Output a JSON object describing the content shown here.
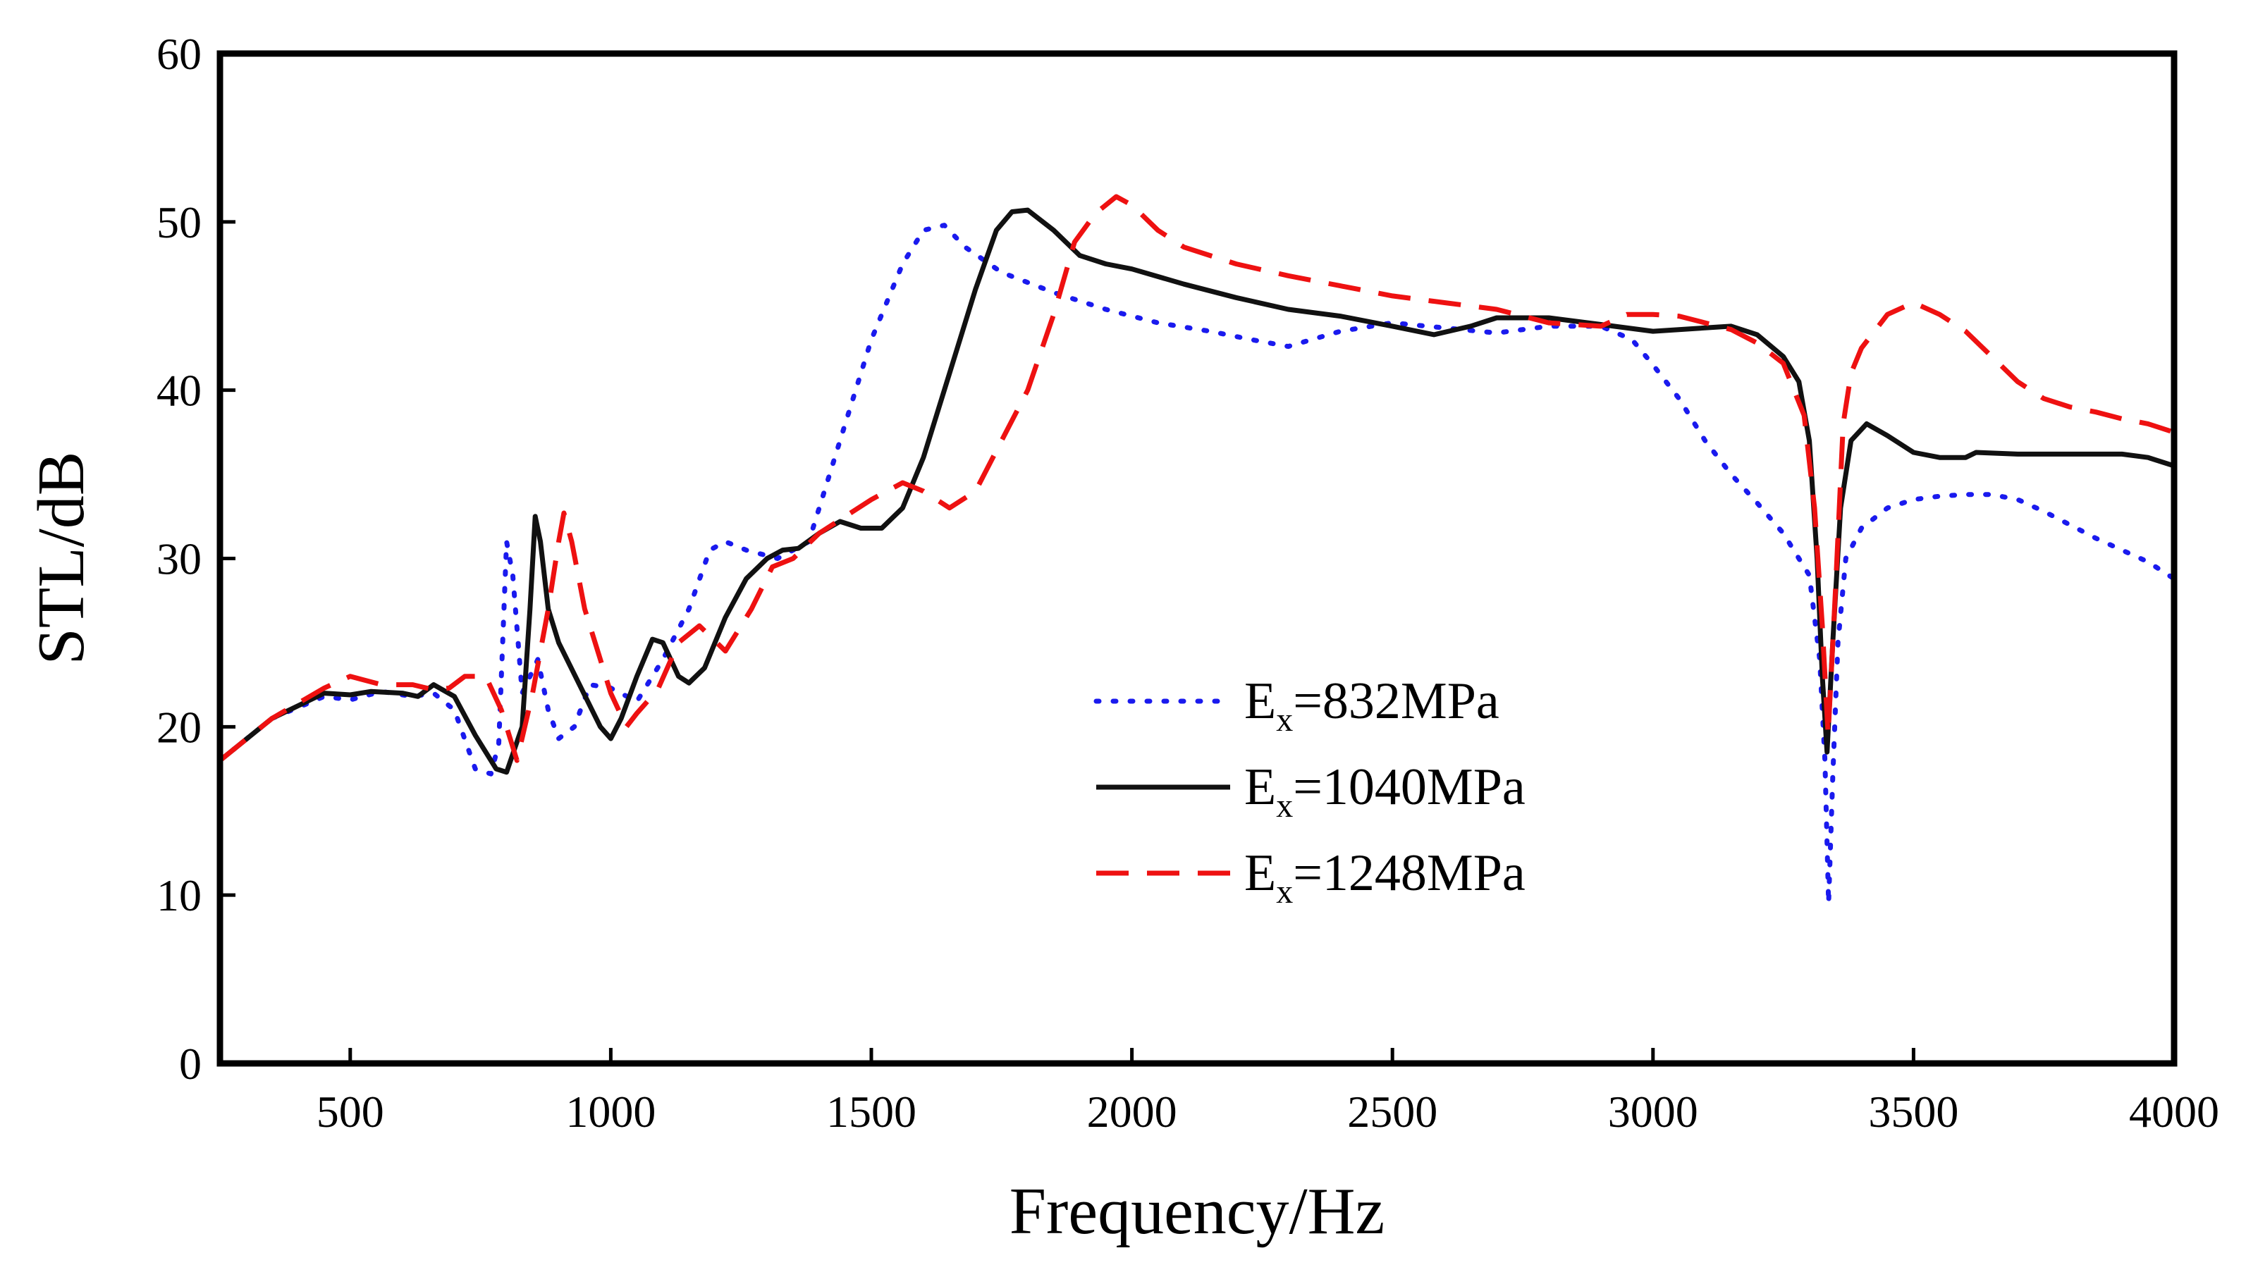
{
  "chart_data": {
    "type": "line",
    "title": "",
    "xlabel": "Frequency/Hz",
    "ylabel": "STL/dB",
    "xlim": [
      250,
      4000
    ],
    "ylim": [
      0,
      60
    ],
    "xticks": [
      500,
      1000,
      1500,
      2000,
      2500,
      3000,
      3500,
      4000
    ],
    "yticks": [
      0,
      10,
      20,
      30,
      40,
      50,
      60
    ],
    "legend_position": "lower-center",
    "series": [
      {
        "name_main": "E",
        "name_sub": "x",
        "name_rest": "=832MPa",
        "color": "#1a1aee",
        "dash": "dotted",
        "points": [
          [
            250,
            18
          ],
          [
            350,
            20.5
          ],
          [
            450,
            21.8
          ],
          [
            500,
            21.6
          ],
          [
            560,
            22.1
          ],
          [
            620,
            21.8
          ],
          [
            660,
            22
          ],
          [
            700,
            21
          ],
          [
            740,
            17.5
          ],
          [
            770,
            17.2
          ],
          [
            785,
            19
          ],
          [
            800,
            31
          ],
          [
            812,
            29
          ],
          [
            830,
            22
          ],
          [
            860,
            24
          ],
          [
            880,
            21
          ],
          [
            900,
            19.3
          ],
          [
            930,
            20
          ],
          [
            960,
            22.5
          ],
          [
            1000,
            22.3
          ],
          [
            1050,
            21.5
          ],
          [
            1100,
            24
          ],
          [
            1150,
            27
          ],
          [
            1190,
            30.5
          ],
          [
            1220,
            31
          ],
          [
            1260,
            30.5
          ],
          [
            1320,
            30
          ],
          [
            1380,
            31
          ],
          [
            1400,
            33
          ],
          [
            1450,
            38
          ],
          [
            1500,
            43
          ],
          [
            1560,
            47.5
          ],
          [
            1600,
            49.5
          ],
          [
            1640,
            49.8
          ],
          [
            1680,
            48.5
          ],
          [
            1750,
            47
          ],
          [
            1850,
            45.8
          ],
          [
            1950,
            44.8
          ],
          [
            2050,
            44
          ],
          [
            2150,
            43.5
          ],
          [
            2230,
            43
          ],
          [
            2300,
            42.6
          ],
          [
            2400,
            43.5
          ],
          [
            2500,
            44
          ],
          [
            2600,
            43.7
          ],
          [
            2700,
            43.4
          ],
          [
            2800,
            43.8
          ],
          [
            2900,
            43.8
          ],
          [
            2960,
            43
          ],
          [
            3000,
            41.5
          ],
          [
            3050,
            39.5
          ],
          [
            3100,
            37
          ],
          [
            3150,
            35
          ],
          [
            3200,
            33.3
          ],
          [
            3250,
            31.5
          ],
          [
            3300,
            29
          ],
          [
            3320,
            24
          ],
          [
            3330,
            18
          ],
          [
            3337,
            9.5
          ],
          [
            3345,
            17
          ],
          [
            3355,
            25
          ],
          [
            3370,
            30
          ],
          [
            3400,
            31.8
          ],
          [
            3450,
            33
          ],
          [
            3500,
            33.5
          ],
          [
            3550,
            33.7
          ],
          [
            3600,
            33.8
          ],
          [
            3650,
            33.8
          ],
          [
            3700,
            33.5
          ],
          [
            3750,
            32.8
          ],
          [
            3800,
            32
          ],
          [
            3850,
            31.2
          ],
          [
            3900,
            30.5
          ],
          [
            3950,
            29.8
          ],
          [
            4000,
            28.8
          ]
        ]
      },
      {
        "name_main": "E",
        "name_sub": "x",
        "name_rest": "=1040MPa",
        "color": "#111111",
        "dash": "solid",
        "points": [
          [
            250,
            18
          ],
          [
            350,
            20.5
          ],
          [
            450,
            22
          ],
          [
            500,
            21.9
          ],
          [
            540,
            22.1
          ],
          [
            600,
            22
          ],
          [
            630,
            21.8
          ],
          [
            660,
            22.5
          ],
          [
            700,
            21.8
          ],
          [
            740,
            19.5
          ],
          [
            780,
            17.5
          ],
          [
            800,
            17.3
          ],
          [
            830,
            20
          ],
          [
            845,
            27
          ],
          [
            855,
            32.5
          ],
          [
            865,
            31
          ],
          [
            880,
            27
          ],
          [
            900,
            25
          ],
          [
            940,
            22.5
          ],
          [
            980,
            20
          ],
          [
            1000,
            19.3
          ],
          [
            1020,
            20.5
          ],
          [
            1050,
            23
          ],
          [
            1080,
            25.2
          ],
          [
            1100,
            25
          ],
          [
            1130,
            23
          ],
          [
            1150,
            22.6
          ],
          [
            1180,
            23.5
          ],
          [
            1220,
            26.5
          ],
          [
            1260,
            28.8
          ],
          [
            1300,
            30
          ],
          [
            1330,
            30.5
          ],
          [
            1360,
            30.6
          ],
          [
            1400,
            31.5
          ],
          [
            1440,
            32.2
          ],
          [
            1480,
            31.8
          ],
          [
            1520,
            31.8
          ],
          [
            1560,
            33
          ],
          [
            1600,
            36
          ],
          [
            1650,
            41
          ],
          [
            1700,
            46
          ],
          [
            1740,
            49.5
          ],
          [
            1770,
            50.6
          ],
          [
            1800,
            50.7
          ],
          [
            1850,
            49.5
          ],
          [
            1900,
            48
          ],
          [
            1950,
            47.5
          ],
          [
            2000,
            47.2
          ],
          [
            2100,
            46.3
          ],
          [
            2200,
            45.5
          ],
          [
            2300,
            44.8
          ],
          [
            2400,
            44.4
          ],
          [
            2500,
            43.8
          ],
          [
            2580,
            43.3
          ],
          [
            2650,
            43.8
          ],
          [
            2700,
            44.3
          ],
          [
            2800,
            44.3
          ],
          [
            2900,
            43.9
          ],
          [
            3000,
            43.5
          ],
          [
            3100,
            43.7
          ],
          [
            3150,
            43.8
          ],
          [
            3200,
            43.3
          ],
          [
            3250,
            42
          ],
          [
            3280,
            40.5
          ],
          [
            3300,
            37
          ],
          [
            3315,
            30
          ],
          [
            3325,
            23
          ],
          [
            3334,
            18.5
          ],
          [
            3345,
            25
          ],
          [
            3360,
            33
          ],
          [
            3380,
            37
          ],
          [
            3410,
            38
          ],
          [
            3450,
            37.3
          ],
          [
            3500,
            36.3
          ],
          [
            3550,
            36
          ],
          [
            3600,
            36
          ],
          [
            3620,
            36.3
          ],
          [
            3700,
            36.2
          ],
          [
            3800,
            36.2
          ],
          [
            3900,
            36.2
          ],
          [
            3950,
            36
          ],
          [
            4000,
            35.5
          ]
        ]
      },
      {
        "name_main": "E",
        "name_sub": "x",
        "name_rest": "=1248MPa",
        "color": "#ee1111",
        "dash": "dashed",
        "points": [
          [
            250,
            18
          ],
          [
            350,
            20.5
          ],
          [
            450,
            22.3
          ],
          [
            500,
            23
          ],
          [
            560,
            22.5
          ],
          [
            620,
            22.5
          ],
          [
            660,
            22.2
          ],
          [
            690,
            22.3
          ],
          [
            720,
            23
          ],
          [
            760,
            23
          ],
          [
            790,
            21
          ],
          [
            820,
            18
          ],
          [
            850,
            22
          ],
          [
            880,
            27
          ],
          [
            900,
            31
          ],
          [
            910,
            32.7
          ],
          [
            925,
            31
          ],
          [
            950,
            27
          ],
          [
            980,
            24
          ],
          [
            1000,
            22
          ],
          [
            1030,
            20
          ],
          [
            1050,
            20.8
          ],
          [
            1090,
            22.2
          ],
          [
            1130,
            25
          ],
          [
            1170,
            26
          ],
          [
            1220,
            24.5
          ],
          [
            1270,
            27
          ],
          [
            1310,
            29.5
          ],
          [
            1350,
            30
          ],
          [
            1400,
            31.5
          ],
          [
            1450,
            32.5
          ],
          [
            1500,
            33.5
          ],
          [
            1560,
            34.5
          ],
          [
            1600,
            34
          ],
          [
            1650,
            33
          ],
          [
            1700,
            34
          ],
          [
            1750,
            37
          ],
          [
            1800,
            40
          ],
          [
            1850,
            44.5
          ],
          [
            1890,
            48.8
          ],
          [
            1930,
            50.5
          ],
          [
            1970,
            51.5
          ],
          [
            2000,
            51
          ],
          [
            2050,
            49.5
          ],
          [
            2100,
            48.5
          ],
          [
            2200,
            47.5
          ],
          [
            2300,
            46.8
          ],
          [
            2400,
            46.2
          ],
          [
            2500,
            45.6
          ],
          [
            2600,
            45.2
          ],
          [
            2700,
            44.8
          ],
          [
            2800,
            44
          ],
          [
            2900,
            43.8
          ],
          [
            2950,
            44.5
          ],
          [
            3000,
            44.5
          ],
          [
            3050,
            44.4
          ],
          [
            3100,
            44
          ],
          [
            3150,
            43.6
          ],
          [
            3200,
            42.8
          ],
          [
            3250,
            41.6
          ],
          [
            3290,
            38.5
          ],
          [
            3310,
            33
          ],
          [
            3325,
            26
          ],
          [
            3336,
            19.5
          ],
          [
            3350,
            28
          ],
          [
            3365,
            38
          ],
          [
            3380,
            41
          ],
          [
            3400,
            42.5
          ],
          [
            3450,
            44.5
          ],
          [
            3500,
            45.2
          ],
          [
            3550,
            44.5
          ],
          [
            3600,
            43.5
          ],
          [
            3650,
            42
          ],
          [
            3700,
            40.5
          ],
          [
            3750,
            39.5
          ],
          [
            3800,
            39
          ],
          [
            3850,
            38.7
          ],
          [
            3900,
            38.3
          ],
          [
            3950,
            38
          ],
          [
            4000,
            37.5
          ]
        ]
      }
    ]
  }
}
